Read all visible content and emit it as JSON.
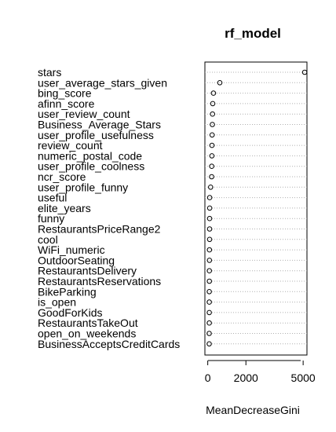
{
  "chart_data": {
    "type": "scatter",
    "title": "rf_model",
    "xlabel": "MeanDecreaseGini",
    "ylabel": "",
    "xlim": [
      -150,
      5200
    ],
    "xticks": [
      0,
      2000,
      5000
    ],
    "grid": "dotted horizontal lines",
    "categories": [
      "stars",
      "user_average_stars_given",
      "bing_score",
      "afinn_score",
      "user_review_count",
      "Business_Average_Stars",
      "user_profile_usefulness",
      "review_count",
      "numeric_postal_code",
      "user_profile_coolness",
      "ncr_score",
      "user_profile_funny",
      "useful",
      "elite_years",
      "funny",
      "RestaurantsPriceRange2",
      "cool",
      "WiFi_numeric",
      "OutdoorSeating",
      "RestaurantsDelivery",
      "RestaurantsReservations",
      "BikeParking",
      "is_open",
      "GoodForKids",
      "RestaurantsTakeOut",
      "open_on_weekends",
      "BusinessAcceptsCreditCards"
    ],
    "values": [
      5080,
      630,
      300,
      260,
      250,
      240,
      230,
      220,
      215,
      210,
      205,
      150,
      100,
      100,
      95,
      95,
      95,
      90,
      90,
      85,
      85,
      80,
      80,
      80,
      80,
      75,
      75
    ]
  }
}
